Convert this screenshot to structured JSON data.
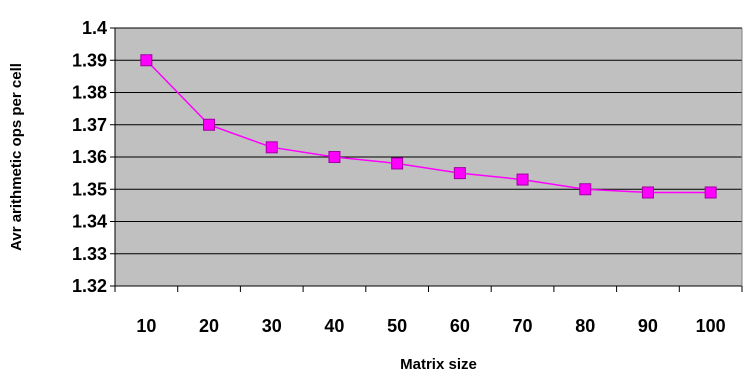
{
  "chart_data": {
    "type": "line",
    "title": "",
    "xlabel": "Matrix size",
    "ylabel": "Avr arithmetic ops per cell",
    "categories": [
      "10",
      "20",
      "30",
      "40",
      "50",
      "60",
      "70",
      "80",
      "90",
      "100"
    ],
    "series": [
      {
        "values": [
          1.39,
          1.37,
          1.363,
          1.36,
          1.358,
          1.355,
          1.353,
          1.35,
          1.349,
          1.349
        ],
        "color": "#ff00ff",
        "marker": "square"
      }
    ],
    "ylim": [
      1.32,
      1.4
    ],
    "yticks": [
      "1.32",
      "1.33",
      "1.34",
      "1.35",
      "1.36",
      "1.37",
      "1.38",
      "1.39",
      "1.4"
    ],
    "grid": true,
    "legend": "none",
    "plot_background": "#c0c0c0"
  }
}
